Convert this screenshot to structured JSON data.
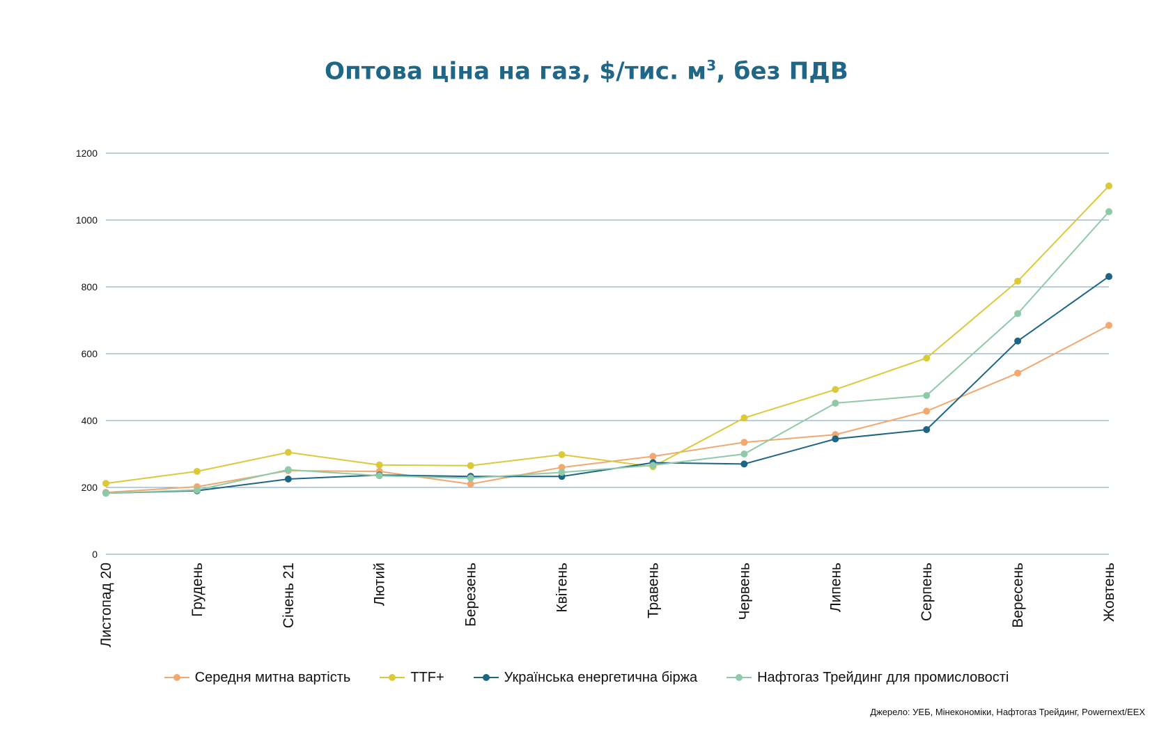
{
  "chart_data": {
    "type": "line",
    "title": "Оптова ціна на газ, $/тис. м",
    "title_sup": "3",
    "title_suffix": ", без ПДВ",
    "categories": [
      "Листопад 20",
      "Грудень",
      "Січень 21",
      "Лютий",
      "Березень",
      "Квітень",
      "Травень",
      "Червень",
      "Липень",
      "Серпень",
      "Вересень",
      "Жовтень"
    ],
    "ylim": [
      0,
      1200
    ],
    "yticks": [
      0,
      200,
      400,
      600,
      800,
      1000,
      1200
    ],
    "grid": true,
    "legend_position": "bottom",
    "series": [
      {
        "name": "Середня митна вартість",
        "color": "#f2a86f",
        "values": [
          185,
          202,
          250,
          248,
          210,
          260,
          293,
          335,
          358,
          428,
          542,
          685
        ]
      },
      {
        "name": "TTF+",
        "color": "#dcc93a",
        "values": [
          212,
          248,
          305,
          267,
          265,
          298,
          262,
          408,
          493,
          587,
          817,
          1102
        ]
      },
      {
        "name": "Українська енергетична біржа",
        "color": "#1c6585",
        "values": [
          183,
          190,
          225,
          237,
          233,
          233,
          274,
          270,
          345,
          373,
          638,
          831
        ]
      },
      {
        "name": "Нафтогаз Трейдинг для промисловості",
        "color": "#8ecaa8",
        "values": [
          183,
          192,
          253,
          235,
          228,
          245,
          266,
          300,
          452,
          475,
          720,
          1025
        ]
      }
    ]
  },
  "source": "Джерело: УЕБ, Мінекономіки, Нафтогаз Трейдинг, Powernext/EEX"
}
